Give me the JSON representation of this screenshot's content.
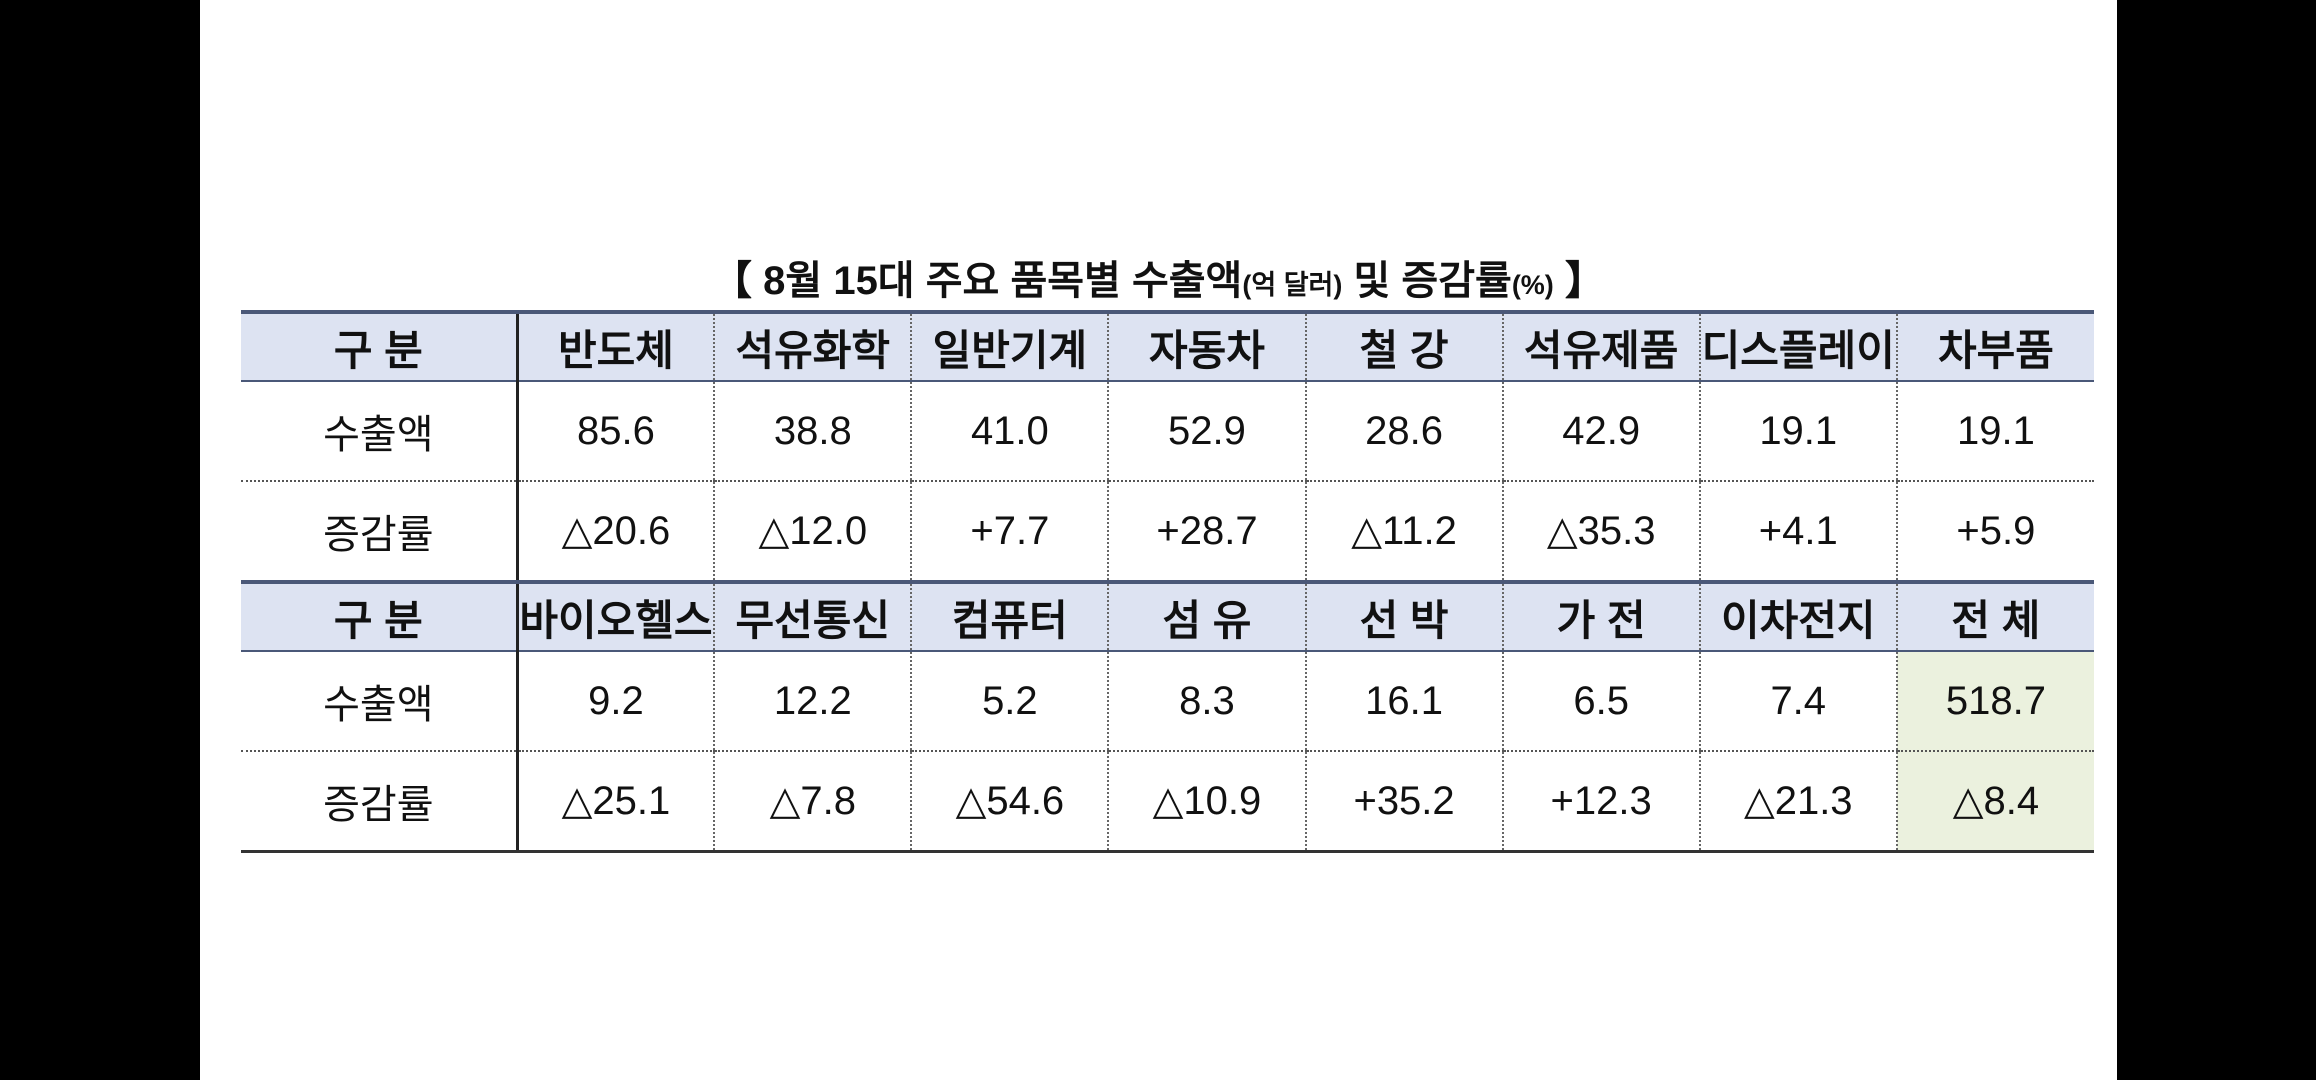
{
  "title": {
    "parts": [
      "【 8월 15대 주요 품목별 수출액",
      "(억 달러)",
      " 및 증감률",
      "(%)",
      " 】"
    ]
  },
  "table": {
    "sections": [
      {
        "header": [
          "구 분",
          "반도체",
          "석유화학",
          "일반기계",
          "자동차",
          "철 강",
          "석유제품",
          "디스플레이",
          "차부품"
        ],
        "rows": [
          [
            "수출액",
            "85.6",
            "38.8",
            "41.0",
            "52.9",
            "28.6",
            "42.9",
            "19.1",
            "19.1"
          ],
          [
            "증감률",
            "△20.6",
            "△12.0",
            "+7.7",
            "+28.7",
            "△11.2",
            "△35.3",
            "+4.1",
            "+5.9"
          ]
        ]
      },
      {
        "header": [
          "구 분",
          "바이오헬스",
          "무선통신",
          "컴퓨터",
          "섬 유",
          "선 박",
          "가 전",
          "이차전지",
          "전 체"
        ],
        "rows": [
          [
            "수출액",
            "9.2",
            "12.2",
            "5.2",
            "8.3",
            "16.1",
            "6.5",
            "7.4",
            "518.7"
          ],
          [
            "증감률",
            "△25.1",
            "△7.8",
            "△54.6",
            "△10.9",
            "+35.2",
            "+12.3",
            "△21.3",
            "△8.4"
          ]
        ]
      }
    ]
  }
}
